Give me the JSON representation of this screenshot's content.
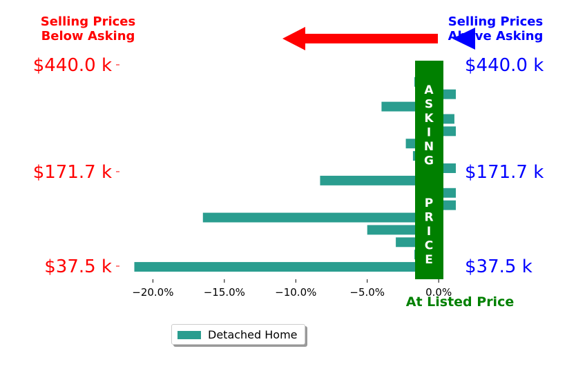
{
  "header": {
    "left_line1": "Selling Prices",
    "left_line2": "Below Asking",
    "right_line1": "Selling Prices",
    "right_line2": "Above Asking"
  },
  "band_label": "ASKING  PRICE",
  "at_listed_label": "At Listed Price",
  "colors": {
    "bar": "#2a9d8f",
    "band": "#008000",
    "left_text": "#ff0000",
    "right_text": "#0000ff",
    "left_arrow": "#ff0000",
    "right_arrow": "#0000ff"
  },
  "legend": {
    "label": "Detached Home"
  },
  "chart_data": {
    "type": "bar",
    "orientation": "horizontal",
    "xlim": [
      -22,
      1.2
    ],
    "xticks": [
      -20,
      -15,
      -10,
      -5,
      0
    ],
    "xtick_labels": [
      "−20.0%",
      "−15.0%",
      "−10.0%",
      "−5.0%",
      "0.0%"
    ],
    "left_tick_labels": [
      "$440.0 k",
      "$171.7 k",
      "$37.5 k"
    ],
    "right_tick_labels": [
      "$440.0 k",
      "$171.7 k",
      "$37.5 k"
    ],
    "series": [
      {
        "name": "Detached Home",
        "values": [
          -1.1,
          -1.7,
          1.2,
          -4.0,
          1.1,
          1.2,
          -2.3,
          -1.8,
          1.2,
          -8.3,
          1.2,
          1.2,
          -16.5,
          -5.0,
          -3.0,
          -1.7,
          -21.3
        ]
      }
    ]
  }
}
